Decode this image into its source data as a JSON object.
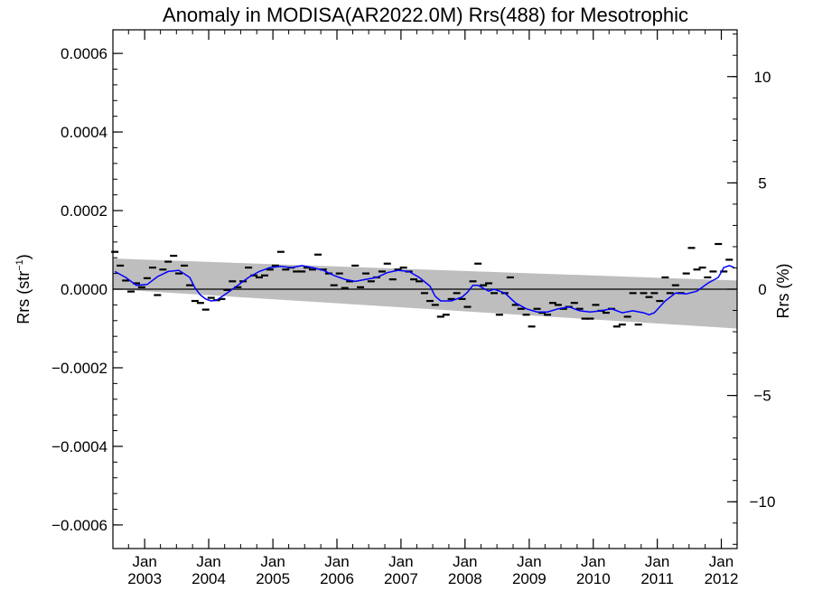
{
  "chart_data": {
    "type": "line",
    "title": "Anomaly in MODISA(AR2022.0M) Rrs(488) for Mesotrophic",
    "ylabel_left": "Rrs (str",
    "ylabel_left_sup": "−1",
    "ylabel_left_close": ")",
    "ylabel_right": "Rrs (%)",
    "ylim_left": [
      -0.00066,
      0.00066
    ],
    "ylim_right": [
      -12.2,
      12.2
    ],
    "yticks_left": [
      {
        "value": 0.0006,
        "label": "0.0006"
      },
      {
        "value": 0.0004,
        "label": "0.0004"
      },
      {
        "value": 0.0002,
        "label": "0.0002"
      },
      {
        "value": 0.0,
        "label": "0.0000"
      },
      {
        "value": -0.0002,
        "label": "−0.0002"
      },
      {
        "value": -0.0004,
        "label": "−0.0004"
      },
      {
        "value": -0.0006,
        "label": "−0.0006"
      }
    ],
    "yticks_right": [
      {
        "value": 10,
        "label": "10"
      },
      {
        "value": 5,
        "label": "5"
      },
      {
        "value": 0,
        "label": "0"
      },
      {
        "value": -5,
        "label": "−5"
      },
      {
        "value": -10,
        "label": "−10"
      }
    ],
    "xlim": [
      "2002-07-04",
      "2012-03-31"
    ],
    "xticks": [
      {
        "date": "2003-01-01",
        "month": "Jan",
        "year": "2003"
      },
      {
        "date": "2004-01-01",
        "month": "Jan",
        "year": "2004"
      },
      {
        "date": "2005-01-01",
        "month": "Jan",
        "year": "2005"
      },
      {
        "date": "2006-01-01",
        "month": "Jan",
        "year": "2006"
      },
      {
        "date": "2007-01-01",
        "month": "Jan",
        "year": "2007"
      },
      {
        "date": "2008-01-01",
        "month": "Jan",
        "year": "2008"
      },
      {
        "date": "2009-01-01",
        "month": "Jan",
        "year": "2009"
      },
      {
        "date": "2010-01-01",
        "month": "Jan",
        "year": "2010"
      },
      {
        "date": "2011-01-01",
        "month": "Jan",
        "year": "2011"
      },
      {
        "date": "2012-01-01",
        "month": "Jan",
        "year": "2012"
      }
    ],
    "trend_band": {
      "start_date": "2002-07-04",
      "end_date": "2012-03-31",
      "upper_start": 7.8e-05,
      "upper_end": 2.2e-05,
      "lower_start": 0.0,
      "lower_end": -0.0001
    },
    "zero_line": 0.0,
    "monthly_anomalies": [
      {
        "date": "2002-07",
        "value": 9.5e-05
      },
      {
        "date": "2002-08",
        "value": 6e-05
      },
      {
        "date": "2002-09",
        "value": 2.2e-05
      },
      {
        "date": "2002-10",
        "value": -6e-06
      },
      {
        "date": "2002-11",
        "value": 1.5e-05
      },
      {
        "date": "2002-12",
        "value": 5e-06
      },
      {
        "date": "2003-01",
        "value": 2.8e-05
      },
      {
        "date": "2003-02",
        "value": 5.5e-05
      },
      {
        "date": "2003-03",
        "value": -1.5e-05
      },
      {
        "date": "2003-04",
        "value": 5e-05
      },
      {
        "date": "2003-05",
        "value": 7e-05
      },
      {
        "date": "2003-06",
        "value": 8.5e-05
      },
      {
        "date": "2003-07",
        "value": 4e-05
      },
      {
        "date": "2003-08",
        "value": 6e-05
      },
      {
        "date": "2003-09",
        "value": 1e-05
      },
      {
        "date": "2003-10",
        "value": -3e-05
      },
      {
        "date": "2003-11",
        "value": -3.5e-05
      },
      {
        "date": "2003-12",
        "value": -5.2e-05
      },
      {
        "date": "2004-01",
        "value": -2.2e-05
      },
      {
        "date": "2004-02",
        "value": -2.8e-05
      },
      {
        "date": "2004-03",
        "value": -2.5e-05
      },
      {
        "date": "2004-04",
        "value": -2e-06
      },
      {
        "date": "2004-05",
        "value": 2e-05
      },
      {
        "date": "2004-06",
        "value": 5e-06
      },
      {
        "date": "2004-07",
        "value": 2e-05
      },
      {
        "date": "2004-08",
        "value": 5.5e-05
      },
      {
        "date": "2004-09",
        "value": 3.5e-05
      },
      {
        "date": "2004-10",
        "value": 3e-05
      },
      {
        "date": "2004-11",
        "value": 3.5e-05
      },
      {
        "date": "2004-12",
        "value": 5e-05
      },
      {
        "date": "2005-01",
        "value": 6e-05
      },
      {
        "date": "2005-02",
        "value": 9.5e-05
      },
      {
        "date": "2005-03",
        "value": 5e-05
      },
      {
        "date": "2005-04",
        "value": 5.5e-05
      },
      {
        "date": "2005-05",
        "value": 4.5e-05
      },
      {
        "date": "2005-06",
        "value": 4.5e-05
      },
      {
        "date": "2005-07",
        "value": 5.5e-05
      },
      {
        "date": "2005-08",
        "value": 5e-05
      },
      {
        "date": "2005-09",
        "value": 8.8e-05
      },
      {
        "date": "2005-10",
        "value": 5e-05
      },
      {
        "date": "2005-11",
        "value": 4e-05
      },
      {
        "date": "2005-12",
        "value": 1e-05
      },
      {
        "date": "2006-01",
        "value": 4e-05
      },
      {
        "date": "2006-02",
        "value": 3e-06
      },
      {
        "date": "2006-03",
        "value": 2e-05
      },
      {
        "date": "2006-04",
        "value": 6e-05
      },
      {
        "date": "2006-05",
        "value": 5e-06
      },
      {
        "date": "2006-06",
        "value": 4e-05
      },
      {
        "date": "2006-07",
        "value": 2e-05
      },
      {
        "date": "2006-08",
        "value": 3e-05
      },
      {
        "date": "2006-09",
        "value": 4.5e-05
      },
      {
        "date": "2006-10",
        "value": 6.5e-05
      },
      {
        "date": "2006-11",
        "value": 2.5e-05
      },
      {
        "date": "2006-12",
        "value": 5e-05
      },
      {
        "date": "2007-01",
        "value": 5.5e-05
      },
      {
        "date": "2007-02",
        "value": 4.5e-05
      },
      {
        "date": "2007-03",
        "value": 2.5e-05
      },
      {
        "date": "2007-04",
        "value": 2e-05
      },
      {
        "date": "2007-05",
        "value": -1e-05
      },
      {
        "date": "2007-06",
        "value": -3e-05
      },
      {
        "date": "2007-07",
        "value": -4e-05
      },
      {
        "date": "2007-08",
        "value": -7e-05
      },
      {
        "date": "2007-09",
        "value": -6.5e-05
      },
      {
        "date": "2007-10",
        "value": -2.5e-05
      },
      {
        "date": "2007-11",
        "value": -1e-05
      },
      {
        "date": "2007-12",
        "value": -2.5e-05
      },
      {
        "date": "2008-01",
        "value": -4.5e-05
      },
      {
        "date": "2008-02",
        "value": 2e-05
      },
      {
        "date": "2008-03",
        "value": 6.5e-05
      },
      {
        "date": "2008-04",
        "value": 1e-05
      },
      {
        "date": "2008-05",
        "value": 1.5e-05
      },
      {
        "date": "2008-06",
        "value": -1e-05
      },
      {
        "date": "2008-07",
        "value": -6.5e-05
      },
      {
        "date": "2008-08",
        "value": -1e-05
      },
      {
        "date": "2008-09",
        "value": 3e-05
      },
      {
        "date": "2008-10",
        "value": -4e-05
      },
      {
        "date": "2008-11",
        "value": -5e-05
      },
      {
        "date": "2008-12",
        "value": -6.5e-05
      },
      {
        "date": "2009-01",
        "value": -9.5e-05
      },
      {
        "date": "2009-02",
        "value": -5e-05
      },
      {
        "date": "2009-03",
        "value": -6e-05
      },
      {
        "date": "2009-04",
        "value": -6.5e-05
      },
      {
        "date": "2009-05",
        "value": -3.5e-05
      },
      {
        "date": "2009-06",
        "value": -4e-05
      },
      {
        "date": "2009-07",
        "value": -5e-05
      },
      {
        "date": "2009-08",
        "value": -4.5e-05
      },
      {
        "date": "2009-09",
        "value": -3.5e-05
      },
      {
        "date": "2009-10",
        "value": -5e-05
      },
      {
        "date": "2009-11",
        "value": -7.5e-05
      },
      {
        "date": "2009-12",
        "value": -7.5e-05
      },
      {
        "date": "2010-01",
        "value": -4e-05
      },
      {
        "date": "2010-02",
        "value": -5.5e-05
      },
      {
        "date": "2010-03",
        "value": -6e-05
      },
      {
        "date": "2010-04",
        "value": -5e-05
      },
      {
        "date": "2010-05",
        "value": -9.5e-05
      },
      {
        "date": "2010-06",
        "value": -9e-05
      },
      {
        "date": "2010-07",
        "value": -7e-05
      },
      {
        "date": "2010-08",
        "value": -1e-05
      },
      {
        "date": "2010-09",
        "value": -9e-05
      },
      {
        "date": "2010-10",
        "value": -1e-05
      },
      {
        "date": "2010-11",
        "value": -2e-05
      },
      {
        "date": "2010-12",
        "value": -1e-05
      },
      {
        "date": "2011-01",
        "value": -3e-05
      },
      {
        "date": "2011-02",
        "value": 3e-05
      },
      {
        "date": "2011-03",
        "value": -1e-05
      },
      {
        "date": "2011-04",
        "value": 1e-05
      },
      {
        "date": "2011-05",
        "value": -1e-05
      },
      {
        "date": "2011-06",
        "value": 4e-05
      },
      {
        "date": "2011-07",
        "value": 0.000105
      },
      {
        "date": "2011-08",
        "value": 5e-05
      },
      {
        "date": "2011-09",
        "value": 5.5e-05
      },
      {
        "date": "2011-10",
        "value": 3e-05
      },
      {
        "date": "2011-11",
        "value": 4.5e-05
      },
      {
        "date": "2011-12",
        "value": 0.000115
      },
      {
        "date": "2012-01",
        "value": 4.5e-05
      },
      {
        "date": "2012-02",
        "value": 7.5e-05
      }
    ],
    "smoothed_line": [
      {
        "date": "2002-07",
        "value": 4.5e-05
      },
      {
        "date": "2002-09",
        "value": 3e-05
      },
      {
        "date": "2002-11",
        "value": 1e-05
      },
      {
        "date": "2003-01",
        "value": 1.2e-05
      },
      {
        "date": "2003-03",
        "value": 3.2e-05
      },
      {
        "date": "2003-05",
        "value": 4.5e-05
      },
      {
        "date": "2003-07",
        "value": 4.8e-05
      },
      {
        "date": "2003-09",
        "value": 3e-05
      },
      {
        "date": "2003-10",
        "value": 3e-06
      },
      {
        "date": "2003-11",
        "value": -1.5e-05
      },
      {
        "date": "2003-12",
        "value": -2.5e-05
      },
      {
        "date": "2004-01",
        "value": -3e-05
      },
      {
        "date": "2004-02",
        "value": -2.8e-05
      },
      {
        "date": "2004-04",
        "value": -1e-05
      },
      {
        "date": "2004-06",
        "value": 1e-05
      },
      {
        "date": "2004-08",
        "value": 3e-05
      },
      {
        "date": "2004-10",
        "value": 4.5e-05
      },
      {
        "date": "2004-12",
        "value": 5.5e-05
      },
      {
        "date": "2005-02",
        "value": 5.8e-05
      },
      {
        "date": "2005-04",
        "value": 5.5e-05
      },
      {
        "date": "2005-06",
        "value": 6e-05
      },
      {
        "date": "2005-08",
        "value": 5.5e-05
      },
      {
        "date": "2005-10",
        "value": 4.8e-05
      },
      {
        "date": "2005-12",
        "value": 3.5e-05
      },
      {
        "date": "2006-02",
        "value": 2.5e-05
      },
      {
        "date": "2006-04",
        "value": 2e-05
      },
      {
        "date": "2006-06",
        "value": 2.5e-05
      },
      {
        "date": "2006-08",
        "value": 3e-05
      },
      {
        "date": "2006-10",
        "value": 4.2e-05
      },
      {
        "date": "2006-12",
        "value": 4.8e-05
      },
      {
        "date": "2007-02",
        "value": 4.5e-05
      },
      {
        "date": "2007-04",
        "value": 3e-05
      },
      {
        "date": "2007-06",
        "value": 8e-06
      },
      {
        "date": "2007-07",
        "value": -1.8e-05
      },
      {
        "date": "2007-08",
        "value": -3e-05
      },
      {
        "date": "2007-10",
        "value": -3e-05
      },
      {
        "date": "2007-12",
        "value": -2e-05
      },
      {
        "date": "2008-01",
        "value": -8e-06
      },
      {
        "date": "2008-02",
        "value": 1e-05
      },
      {
        "date": "2008-03",
        "value": 1e-05
      },
      {
        "date": "2008-05",
        "value": -5e-06
      },
      {
        "date": "2008-06",
        "value": 0.0
      },
      {
        "date": "2008-08",
        "value": -1e-05
      },
      {
        "date": "2008-10",
        "value": -3.5e-05
      },
      {
        "date": "2008-12",
        "value": -5e-05
      },
      {
        "date": "2009-02",
        "value": -5.8e-05
      },
      {
        "date": "2009-04",
        "value": -5.8e-05
      },
      {
        "date": "2009-06",
        "value": -5e-05
      },
      {
        "date": "2009-08",
        "value": -4.5e-05
      },
      {
        "date": "2009-10",
        "value": -5.5e-05
      },
      {
        "date": "2009-12",
        "value": -5.8e-05
      },
      {
        "date": "2010-02",
        "value": -5.5e-05
      },
      {
        "date": "2010-04",
        "value": -5e-05
      },
      {
        "date": "2010-06",
        "value": -6e-05
      },
      {
        "date": "2010-08",
        "value": -5.5e-05
      },
      {
        "date": "2010-10",
        "value": -6e-05
      },
      {
        "date": "2010-11",
        "value": -6.5e-05
      },
      {
        "date": "2010-12",
        "value": -6e-05
      },
      {
        "date": "2011-02",
        "value": -3e-05
      },
      {
        "date": "2011-04",
        "value": -1e-05
      },
      {
        "date": "2011-06",
        "value": -1.2e-05
      },
      {
        "date": "2011-08",
        "value": -5e-06
      },
      {
        "date": "2011-10",
        "value": 1.5e-05
      },
      {
        "date": "2011-12",
        "value": 3e-05
      },
      {
        "date": "2012-01",
        "value": 5.5e-05
      },
      {
        "date": "2012-02",
        "value": 6e-05
      },
      {
        "date": "2012-03",
        "value": 5.5e-05
      }
    ],
    "colors": {
      "band": "#bebebe",
      "smoothed_line": "#0000ff",
      "markers": "#000000",
      "zero_line": "#000000",
      "axes": "#000000"
    },
    "grid": false
  }
}
